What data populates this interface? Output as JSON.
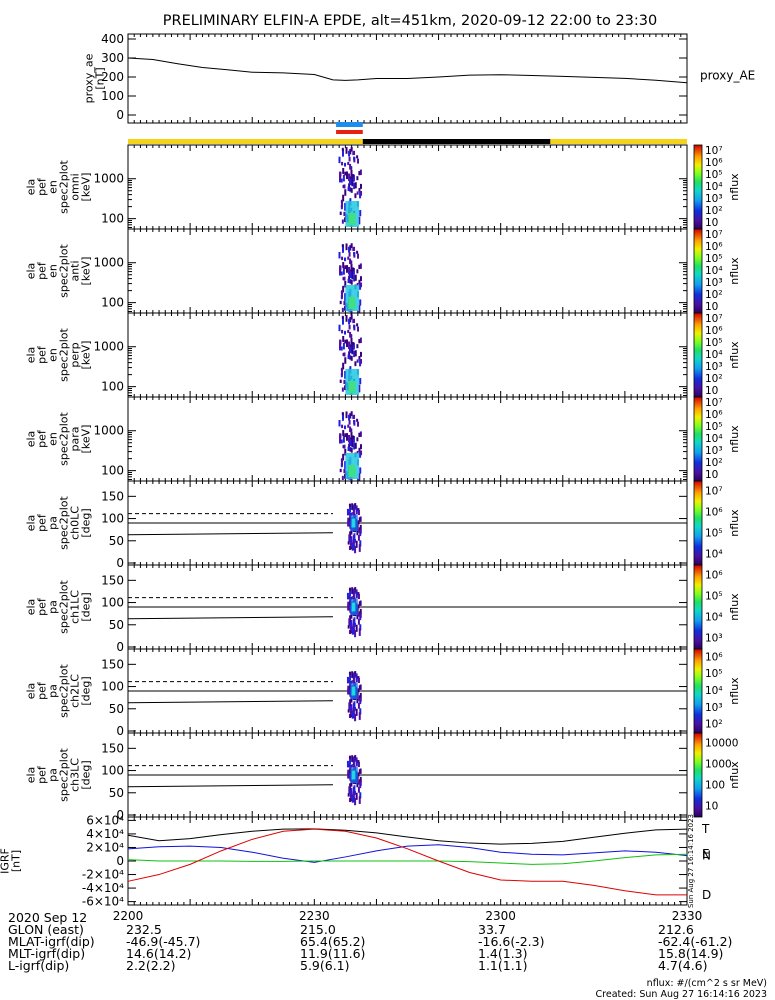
{
  "title": "PRELIMINARY ELFIN-A EPDE, alt=451km, 2020-09-12 22:00 to 23:30",
  "colors": {
    "ae_line": "#000000",
    "bar_yellow": "#f5d31b",
    "bar_black": "#000000",
    "bar_blue": "#1d8cf0",
    "bar_red": "#e82010",
    "igrf_black": "#000000",
    "igrf_blue": "#1010dd",
    "igrf_green": "#10c010",
    "igrf_red": "#dd0000"
  },
  "chart_data": [
    {
      "id": "ae",
      "type": "line",
      "ylabel_lines": [
        "proxy_ae",
        "[nT]"
      ],
      "ylim": [
        0,
        400
      ],
      "yticks": [
        "0",
        "100",
        "200",
        "300",
        "400"
      ],
      "series": [
        {
          "name": "proxy_AE",
          "x": [
            0,
            4,
            8,
            12,
            16,
            20,
            25,
            30,
            33,
            35,
            37,
            40,
            45,
            50,
            55,
            60,
            65,
            70,
            75,
            80,
            85,
            90
          ],
          "values": [
            300,
            292,
            270,
            250,
            238,
            225,
            222,
            213,
            185,
            182,
            185,
            192,
            192,
            200,
            210,
            212,
            208,
            203,
            198,
            193,
            183,
            170
          ]
        }
      ]
    },
    {
      "id": "status-bar",
      "type": "bar",
      "segments": [
        {
          "from": 0,
          "to": 37.8,
          "color": "yellow"
        },
        {
          "from": 37.8,
          "to": 68,
          "color": "black"
        },
        {
          "from": 68,
          "to": 90,
          "color": "yellow"
        }
      ],
      "markers": [
        {
          "from": 33.5,
          "to": 37.8,
          "color": "blue"
        },
        {
          "from": 33.5,
          "to": 37.8,
          "color": "red"
        }
      ]
    },
    {
      "id": "en-omni",
      "type": "heatmap",
      "ylabel_lines": [
        "ela",
        "pef",
        "en",
        "spec2plot",
        "omni",
        "[keV]"
      ],
      "yscale": "log",
      "ylim": [
        55,
        7000
      ],
      "yticks": [
        100,
        1000
      ],
      "colorbar": {
        "label": "nflux",
        "ticks": [
          "10",
          "10²",
          "10³",
          "10⁴",
          "10⁵",
          "10⁶",
          "10⁷"
        ]
      }
    },
    {
      "id": "en-anti",
      "type": "heatmap",
      "ylabel_lines": [
        "ela",
        "pef",
        "en",
        "spec2plot",
        "anti",
        "[keV]"
      ],
      "yscale": "log",
      "ylim": [
        55,
        7000
      ],
      "yticks": [
        100,
        1000
      ],
      "colorbar": {
        "label": "nflux",
        "ticks": [
          "10",
          "10²",
          "10³",
          "10⁴",
          "10⁵",
          "10⁶",
          "10⁷"
        ]
      }
    },
    {
      "id": "en-perp",
      "type": "heatmap",
      "ylabel_lines": [
        "ela",
        "pef",
        "en",
        "spec2plot",
        "perp",
        "[keV]"
      ],
      "yscale": "log",
      "ylim": [
        55,
        7000
      ],
      "yticks": [
        100,
        1000
      ],
      "colorbar": {
        "label": "nflux",
        "ticks": [
          "10",
          "10²",
          "10³",
          "10⁴",
          "10⁵",
          "10⁶",
          "10⁷"
        ]
      }
    },
    {
      "id": "en-para",
      "type": "heatmap",
      "ylabel_lines": [
        "ela",
        "pef",
        "en",
        "spec2plot",
        "para",
        "[keV]"
      ],
      "yscale": "log",
      "ylim": [
        55,
        7000
      ],
      "yticks": [
        100,
        1000
      ],
      "colorbar": {
        "label": "nflux",
        "ticks": [
          "10",
          "10²",
          "10³",
          "10⁴",
          "10⁵",
          "10⁶",
          "10⁷"
        ]
      }
    },
    {
      "id": "pa-ch0",
      "type": "heatmap",
      "ylabel_lines": [
        "ela",
        "pef",
        "pa",
        "spec2plot",
        "ch0LC",
        "[deg]"
      ],
      "ylim": [
        0,
        180
      ],
      "yticks": [
        0,
        50,
        100,
        150
      ],
      "colorbar": {
        "label": "nflux",
        "ticks": [
          "10⁴",
          "10⁵",
          "10⁶",
          "10⁷"
        ]
      }
    },
    {
      "id": "pa-ch1",
      "type": "heatmap",
      "ylabel_lines": [
        "ela",
        "pef",
        "pa",
        "spec2plot",
        "ch1LC",
        "[deg]"
      ],
      "ylim": [
        0,
        180
      ],
      "yticks": [
        0,
        50,
        100,
        150
      ],
      "colorbar": {
        "label": "nflux",
        "ticks": [
          "10³",
          "10⁴",
          "10⁵",
          "10⁶"
        ]
      }
    },
    {
      "id": "pa-ch2",
      "type": "heatmap",
      "ylabel_lines": [
        "ela",
        "pef",
        "pa",
        "spec2plot",
        "ch2LC",
        "[deg]"
      ],
      "ylim": [
        0,
        180
      ],
      "yticks": [
        0,
        50,
        100,
        150
      ],
      "colorbar": {
        "label": "nflux",
        "ticks": [
          "10²",
          "10³",
          "10⁴",
          "10⁵",
          "10⁶"
        ]
      }
    },
    {
      "id": "pa-ch3",
      "type": "heatmap",
      "ylabel_lines": [
        "ela",
        "pef",
        "pa",
        "spec2plot",
        "ch3LC",
        "[deg]"
      ],
      "ylim": [
        0,
        180
      ],
      "yticks": [
        0,
        50,
        100,
        150
      ],
      "colorbar": {
        "label": "nflux",
        "ticks": [
          "10",
          "100",
          "1000",
          "10000"
        ]
      }
    },
    {
      "id": "igrf",
      "type": "line",
      "ylabel_lines": [
        "IGRF",
        "[nT]"
      ],
      "ylim": [
        -65000,
        65000
      ],
      "yticks": [
        "-6×10⁴",
        "-4×10⁴",
        "-2×10⁴",
        "0",
        "2×10⁴",
        "4×10⁴",
        "6×10⁴"
      ],
      "ytick_values": [
        -60000,
        -40000,
        -20000,
        0,
        20000,
        40000,
        60000
      ],
      "side_note": "Sun Aug 27 16:14:16 2023",
      "series": [
        {
          "name": "T",
          "color": "black",
          "x": [
            0,
            5,
            10,
            15,
            20,
            25,
            30,
            35,
            40,
            45,
            50,
            55,
            60,
            65,
            70,
            75,
            80,
            85,
            90
          ],
          "values": [
            38000,
            30000,
            33000,
            39000,
            44000,
            47000,
            47500,
            45500,
            41500,
            35500,
            30000,
            26500,
            25000,
            26000,
            29000,
            35000,
            41000,
            46000,
            47000
          ]
        },
        {
          "name": "N",
          "color": "blue",
          "x": [
            0,
            5,
            10,
            15,
            20,
            25,
            30,
            35,
            40,
            45,
            50,
            55,
            60,
            65,
            70,
            75,
            80,
            85,
            90
          ],
          "values": [
            18000,
            21000,
            22000,
            20000,
            13000,
            4000,
            -2000,
            6000,
            15000,
            22000,
            24000,
            20000,
            13000,
            10000,
            9000,
            12000,
            15000,
            13000,
            8000
          ]
        },
        {
          "name": "E",
          "color": "green",
          "x": [
            0,
            5,
            10,
            15,
            20,
            25,
            30,
            35,
            40,
            45,
            50,
            55,
            60,
            65,
            70,
            75,
            80,
            85,
            90
          ],
          "values": [
            2000,
            0,
            0,
            0,
            -500,
            -500,
            0,
            0,
            0,
            0,
            0,
            -1000,
            -3000,
            -5000,
            -4000,
            0,
            5000,
            9000,
            10000
          ]
        },
        {
          "name": "D",
          "color": "red",
          "x": [
            0,
            5,
            10,
            15,
            20,
            25,
            30,
            35,
            40,
            45,
            50,
            55,
            60,
            65,
            70,
            75,
            80,
            85,
            90
          ],
          "values": [
            -30000,
            -20000,
            -5000,
            15000,
            32000,
            44000,
            47000,
            44000,
            34000,
            18000,
            0,
            -17000,
            -28000,
            -30000,
            -30000,
            -36000,
            -44000,
            -50000,
            -50000
          ]
        }
      ]
    }
  ],
  "x_axis": {
    "xlim": [
      0,
      90
    ],
    "ticks": [
      0,
      30,
      60,
      90
    ],
    "tick_labels": [
      "2200",
      "2230",
      "2300",
      "2330"
    ]
  },
  "footer": {
    "rows": [
      {
        "label": "2020 Sep 12",
        "cols": [
          "2200",
          "2230",
          "2300",
          "2330"
        ]
      },
      {
        "label": "GLON (east)",
        "cols": [
          "232.5",
          "215.0",
          "33.7",
          "212.6"
        ]
      },
      {
        "label": "MLAT-igrf(dip)",
        "cols": [
          "-46.9(-45.7)",
          "65.4(65.2)",
          "-16.6(-2.3)",
          "-62.4(-61.2)"
        ]
      },
      {
        "label": "MLT-igrf(dip)",
        "cols": [
          "14.6(14.2)",
          "11.9(11.6)",
          "1.4(1.3)",
          "15.8(14.9)"
        ]
      },
      {
        "label": "L-igrf(dip)",
        "cols": [
          "2.2(2.2)",
          "5.9(6.1)",
          "1.1(1.1)",
          "4.7(4.6)"
        ]
      }
    ],
    "units_note": "nflux: #/(cm^2 s sr MeV)",
    "created": "Created: Sun Aug 27 16:14:16 2023"
  }
}
